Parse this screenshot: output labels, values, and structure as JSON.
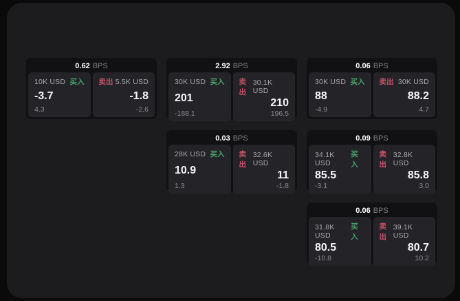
{
  "labels": {
    "bps": "BPS",
    "buy": "买入",
    "sell": "卖出"
  },
  "colors": {
    "buy_green": "#47a16b",
    "sell_red": "#c75168",
    "background": "#0a0a0b",
    "surface": "#1c1c1e",
    "card": "#111113",
    "panel": "#242428"
  },
  "cards": [
    {
      "bps": "0.62",
      "row": 1,
      "col": 1,
      "buy": {
        "size": "10K USD",
        "price": "-3.7",
        "change": "4.3"
      },
      "sell": {
        "size": "5.5K USD",
        "price": "-1.8",
        "change": "-2.6"
      }
    },
    {
      "bps": "2.92",
      "row": 1,
      "col": 2,
      "buy": {
        "size": "30K USD",
        "price": "201",
        "change": "-188.1"
      },
      "sell": {
        "size": "30.1K USD",
        "price": "210",
        "change": "196.5"
      }
    },
    {
      "bps": "0.06",
      "row": 1,
      "col": 3,
      "buy": {
        "size": "30K USD",
        "price": "88",
        "change": "-4.9"
      },
      "sell": {
        "size": "30K USD",
        "price": "88.2",
        "change": "4.7"
      }
    },
    {
      "bps": "0.03",
      "row": 2,
      "col": 2,
      "buy": {
        "size": "28K USD",
        "price": "10.9",
        "change": "1.3"
      },
      "sell": {
        "size": "32.6K USD",
        "price": "11",
        "change": "-1.8"
      }
    },
    {
      "bps": "0.09",
      "row": 2,
      "col": 3,
      "buy": {
        "size": "34.1K USD",
        "price": "85.5",
        "change": "-3.1"
      },
      "sell": {
        "size": "32.8K USD",
        "price": "85.8",
        "change": "3.0"
      }
    },
    {
      "bps": "0.06",
      "row": 3,
      "col": 3,
      "buy": {
        "size": "31.8K USD",
        "price": "80.5",
        "change": "-10.8"
      },
      "sell": {
        "size": "39.1K USD",
        "price": "80.7",
        "change": "10.2"
      }
    }
  ]
}
